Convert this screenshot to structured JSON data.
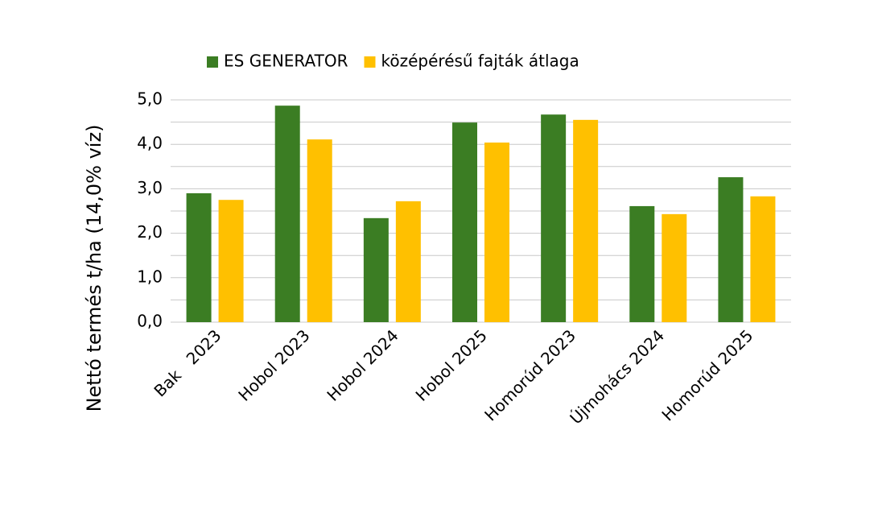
{
  "chart_data": {
    "type": "bar",
    "y_label": "Nettó termés t/ha (14,0% víz)",
    "categories": [
      "Bak   2023",
      "Hobol 2023",
      "Hobol 2024",
      "Hobol 2025",
      "Homorúd 2023",
      "Újmohács 2024",
      "Homorúd 2025"
    ],
    "series": [
      {
        "name": "ES GENERATOR",
        "color": "#3b7d23",
        "values": [
          2.9,
          4.87,
          2.34,
          4.49,
          4.67,
          2.61,
          3.26
        ]
      },
      {
        "name": "középérésű fajták átlaga",
        "color": "#ffc000",
        "values": [
          2.75,
          4.11,
          2.72,
          4.04,
          4.55,
          2.43,
          2.83
        ]
      }
    ],
    "ylim": [
      0,
      5
    ],
    "yticks": [
      {
        "value": 0,
        "label": "0,0"
      },
      {
        "value": 1,
        "label": "1,0"
      },
      {
        "value": 2,
        "label": "2,0"
      },
      {
        "value": 3,
        "label": "3,0"
      },
      {
        "value": 4,
        "label": "4,0"
      },
      {
        "value": 5,
        "label": "5,0"
      }
    ],
    "yminorticks": [
      0.5,
      1.5,
      2.5,
      3.5,
      4.5
    ],
    "grid": true,
    "legend": "top"
  }
}
